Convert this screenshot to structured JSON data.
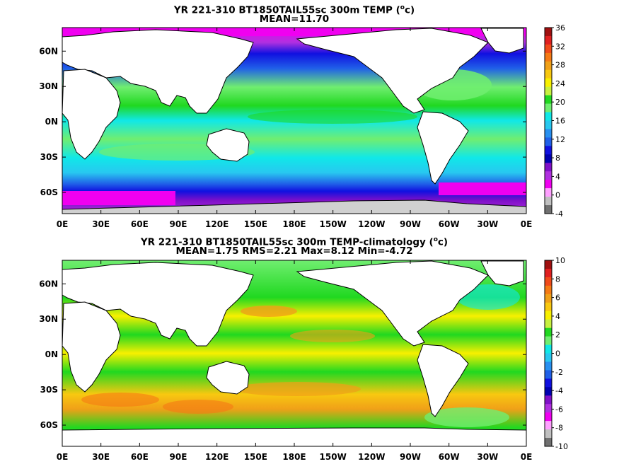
{
  "panels": [
    {
      "title_prefix": "YR 221-310 BT1850TAIL55sc 300m TEMP (",
      "title_unit_sup": "o",
      "title_unit_rest": "c)",
      "subtitle": "MEAN=11.70",
      "colorbar_labels": [
        "36",
        "32",
        "28",
        "24",
        "20",
        "16",
        "12",
        "8",
        "4",
        "0",
        "-4"
      ],
      "colorbar_colors": [
        "#a01010",
        "#e02020",
        "#f04a1a",
        "#f57a14",
        "#f0a018",
        "#f8c810",
        "#f8f000",
        "#c8f040",
        "#20d820",
        "#70ee70",
        "#10e8e8",
        "#28c8f0",
        "#2890f0",
        "#2060e8",
        "#1010e0",
        "#0000b0",
        "#8010c8",
        "#b030e0",
        "#f000f0",
        "#ffa0ff",
        "#c0c0c0",
        "#707070"
      ]
    },
    {
      "title_prefix": "YR 221-310 BT1850TAIL55sc 300m TEMP-climatology (",
      "title_unit_sup": "o",
      "title_unit_rest": "c)",
      "subtitle": "MEAN=1.75   RMS=2.21   Max=8.12   Min=-4.72",
      "colorbar_labels": [
        "10",
        "8",
        "6",
        "4",
        "2",
        "0",
        "-2",
        "-4",
        "-6",
        "-8",
        "-10"
      ],
      "colorbar_colors": [
        "#a01010",
        "#e02020",
        "#f04a1a",
        "#f57a14",
        "#f0a018",
        "#f8c810",
        "#f8f000",
        "#c8f040",
        "#20d820",
        "#70ee70",
        "#10e8e8",
        "#28c8f0",
        "#2890f0",
        "#2060e8",
        "#1010e0",
        "#0000b0",
        "#8010c8",
        "#b030e0",
        "#f000f0",
        "#ffa0ff",
        "#c0c0c0",
        "#707070"
      ]
    }
  ],
  "x_ticks": [
    "0E",
    "30E",
    "60E",
    "90E",
    "120E",
    "150E",
    "180E",
    "150W",
    "120W",
    "90W",
    "60W",
    "30W",
    "0E"
  ],
  "y_ticks": [
    "60N",
    "30N",
    "0N",
    "30S",
    "60S"
  ]
}
